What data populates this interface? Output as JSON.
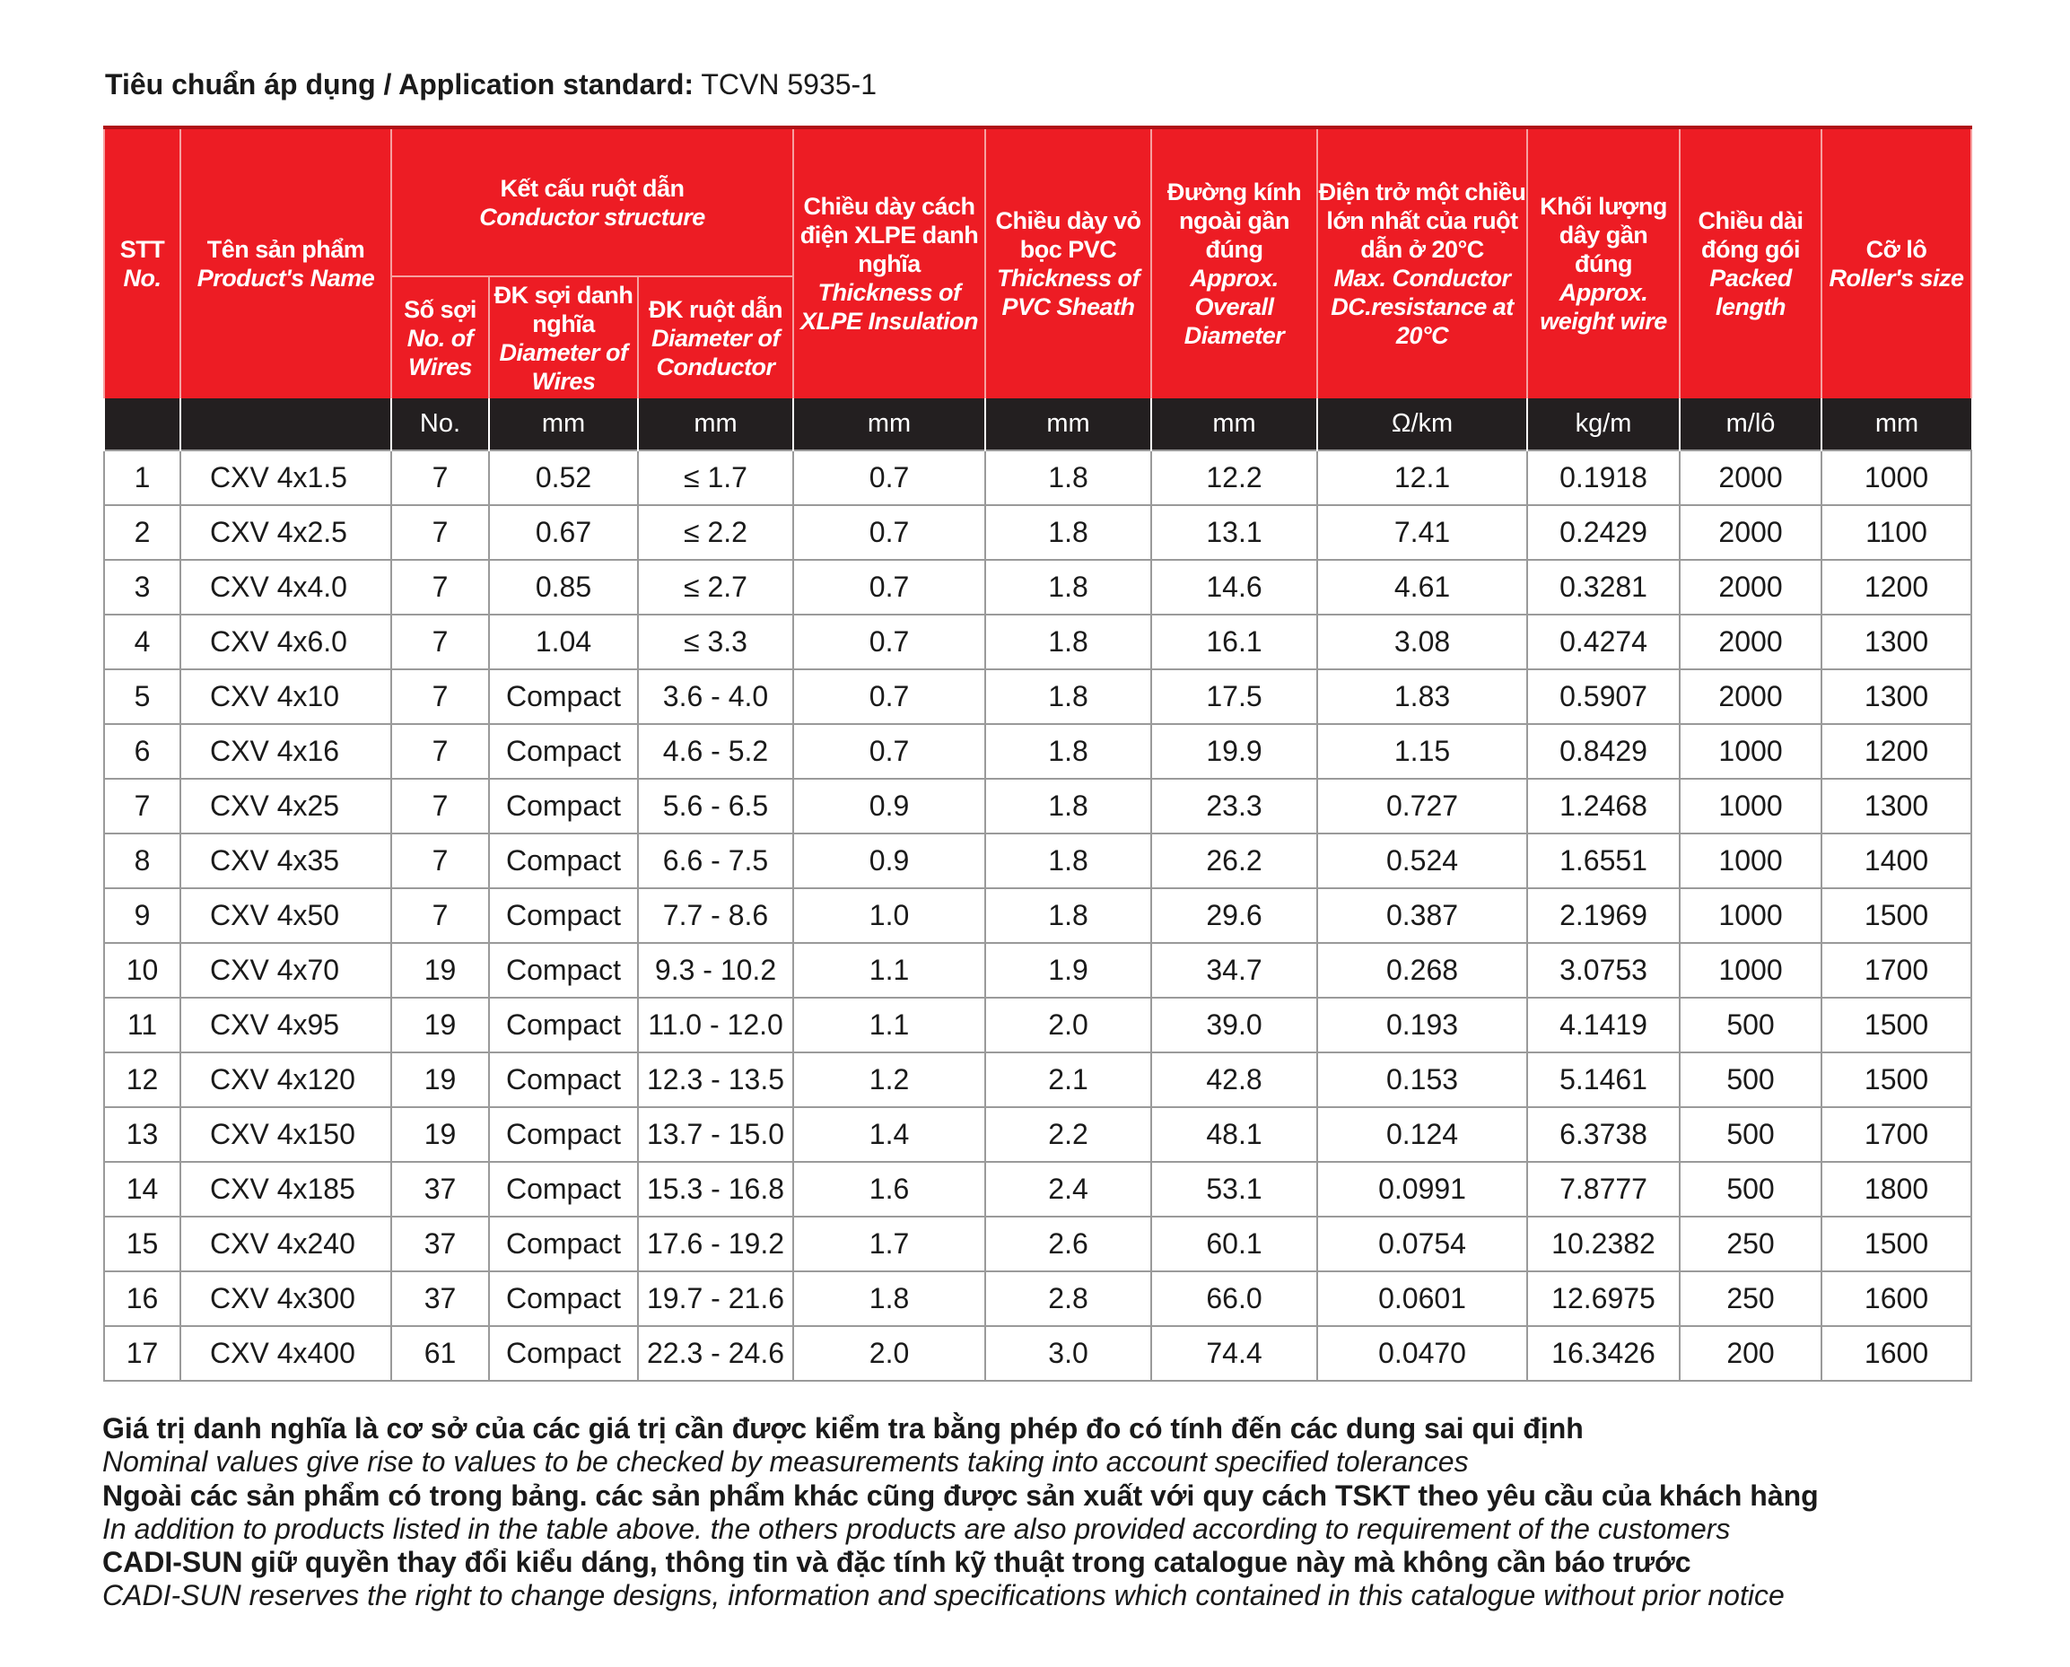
{
  "title": {
    "label": "Tiêu chuẩn áp dụng / Application standard:",
    "value": "TCVN 5935-1"
  },
  "colors": {
    "header_red": "#ed1c24",
    "units_black": "#231f20"
  },
  "header": {
    "stt": {
      "vi": "STT",
      "en": "No."
    },
    "name": {
      "vi": "Tên sản phẩm",
      "en": "Product's Name"
    },
    "conductor": {
      "vi": "Kết cấu ruột dẫn",
      "en": "Conductor structure"
    },
    "wires": {
      "vi": "Số sợi",
      "en": "No. of Wires"
    },
    "wire_dia": {
      "vi": "ĐK sợi danh nghĩa",
      "en": "Diameter of Wires"
    },
    "cond_dia": {
      "vi": "ĐK ruột dẫn",
      "en": "Diameter of Conductor"
    },
    "xlpe": {
      "vi": "Chiều dày cách điện XLPE danh nghĩa",
      "en": "Thickness of XLPE Insulation"
    },
    "pvc": {
      "vi": "Chiều dày vỏ bọc PVC",
      "en": "Thickness of PVC Sheath"
    },
    "overall": {
      "vi": "Đường kính ngoài gần đúng",
      "en": "Approx. Overall Diameter"
    },
    "resistance": {
      "vi": "Điện trở một chiều lớn nhất của ruột dẫn ở 20°C",
      "en": "Max. Conductor DC.resistance at 20°C"
    },
    "weight": {
      "vi": "Khối lượng dây gần đúng",
      "en": "Approx. weight wire"
    },
    "length": {
      "vi": "Chiều dài đóng gói",
      "en": "Packed length"
    },
    "roller": {
      "vi": "Cỡ lô",
      "en": "Roller's size"
    }
  },
  "units": [
    "",
    "",
    "No.",
    "mm",
    "mm",
    "mm",
    "mm",
    "mm",
    "Ω/km",
    "kg/m",
    "m/lô",
    "mm"
  ],
  "rows": [
    [
      "1",
      "CXV 4x1.5",
      "7",
      "0.52",
      "≤ 1.7",
      "0.7",
      "1.8",
      "12.2",
      "12.1",
      "0.1918",
      "2000",
      "1000"
    ],
    [
      "2",
      "CXV 4x2.5",
      "7",
      "0.67",
      "≤ 2.2",
      "0.7",
      "1.8",
      "13.1",
      "7.41",
      "0.2429",
      "2000",
      "1100"
    ],
    [
      "3",
      "CXV 4x4.0",
      "7",
      "0.85",
      "≤ 2.7",
      "0.7",
      "1.8",
      "14.6",
      "4.61",
      "0.3281",
      "2000",
      "1200"
    ],
    [
      "4",
      "CXV 4x6.0",
      "7",
      "1.04",
      "≤ 3.3",
      "0.7",
      "1.8",
      "16.1",
      "3.08",
      "0.4274",
      "2000",
      "1300"
    ],
    [
      "5",
      "CXV 4x10",
      "7",
      "Compact",
      "3.6 - 4.0",
      "0.7",
      "1.8",
      "17.5",
      "1.83",
      "0.5907",
      "2000",
      "1300"
    ],
    [
      "6",
      "CXV 4x16",
      "7",
      "Compact",
      "4.6 - 5.2",
      "0.7",
      "1.8",
      "19.9",
      "1.15",
      "0.8429",
      "1000",
      "1200"
    ],
    [
      "7",
      "CXV 4x25",
      "7",
      "Compact",
      "5.6 - 6.5",
      "0.9",
      "1.8",
      "23.3",
      "0.727",
      "1.2468",
      "1000",
      "1300"
    ],
    [
      "8",
      "CXV 4x35",
      "7",
      "Compact",
      "6.6 - 7.5",
      "0.9",
      "1.8",
      "26.2",
      "0.524",
      "1.6551",
      "1000",
      "1400"
    ],
    [
      "9",
      "CXV 4x50",
      "7",
      "Compact",
      "7.7 - 8.6",
      "1.0",
      "1.8",
      "29.6",
      "0.387",
      "2.1969",
      "1000",
      "1500"
    ],
    [
      "10",
      "CXV 4x70",
      "19",
      "Compact",
      "9.3 - 10.2",
      "1.1",
      "1.9",
      "34.7",
      "0.268",
      "3.0753",
      "1000",
      "1700"
    ],
    [
      "11",
      "CXV 4x95",
      "19",
      "Compact",
      "11.0 - 12.0",
      "1.1",
      "2.0",
      "39.0",
      "0.193",
      "4.1419",
      "500",
      "1500"
    ],
    [
      "12",
      "CXV 4x120",
      "19",
      "Compact",
      "12.3 - 13.5",
      "1.2",
      "2.1",
      "42.8",
      "0.153",
      "5.1461",
      "500",
      "1500"
    ],
    [
      "13",
      "CXV 4x150",
      "19",
      "Compact",
      "13.7 - 15.0",
      "1.4",
      "2.2",
      "48.1",
      "0.124",
      "6.3738",
      "500",
      "1700"
    ],
    [
      "14",
      "CXV 4x185",
      "37",
      "Compact",
      "15.3 - 16.8",
      "1.6",
      "2.4",
      "53.1",
      "0.0991",
      "7.8777",
      "500",
      "1800"
    ],
    [
      "15",
      "CXV 4x240",
      "37",
      "Compact",
      "17.6 - 19.2",
      "1.7",
      "2.6",
      "60.1",
      "0.0754",
      "10.2382",
      "250",
      "1500"
    ],
    [
      "16",
      "CXV 4x300",
      "37",
      "Compact",
      "19.7 - 21.6",
      "1.8",
      "2.8",
      "66.0",
      "0.0601",
      "12.6975",
      "250",
      "1600"
    ],
    [
      "17",
      "CXV 4x400",
      "61",
      "Compact",
      "22.3 - 24.6",
      "2.0",
      "3.0",
      "74.4",
      "0.0470",
      "16.3426",
      "200",
      "1600"
    ]
  ],
  "notes": [
    {
      "vi": "Giá trị danh nghĩa là cơ sở của các giá trị cần được kiểm tra bằng phép đo có tính đến các dung sai qui định",
      "en": "Nominal values give rise to values to be checked by measurements taking into account specified tolerances"
    },
    {
      "vi": "Ngoài các sản phẩm có trong bảng. các sản phẩm khác cũng được sản xuất với quy cách TSKT theo yêu cầu của khách hàng",
      "en": "In addition to products listed in the table above. the others products are also provided according to requirement of the customers"
    },
    {
      "vi": "CADI-SUN giữ quyền thay đổi kiểu dáng, thông tin và đặc tính kỹ thuật trong catalogue này mà không cần báo trước",
      "en": "CADI-SUN reserves the right to change designs, information and specifications which contained in this catalogue without prior notice"
    }
  ]
}
